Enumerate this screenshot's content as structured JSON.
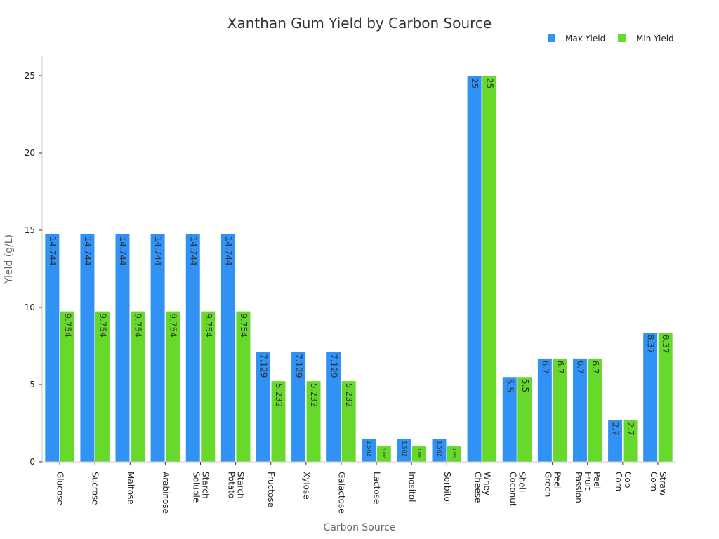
{
  "chart_data": {
    "type": "bar",
    "title": "Xanthan Gum Yield by Carbon Source",
    "xlabel": "Carbon Source",
    "ylabel": "Yield (g/L)",
    "ylim": [
      0,
      26.2
    ],
    "yticks": [
      0,
      5,
      10,
      15,
      20,
      25
    ],
    "legend_position": "top-right",
    "categories": [
      [
        "Glucose"
      ],
      [
        "Sucrose"
      ],
      [
        "Maltose"
      ],
      [
        "Arabinose"
      ],
      [
        "Soluble",
        "Starch"
      ],
      [
        "Potato",
        "Starch"
      ],
      [
        "Fructose"
      ],
      [
        "Xylose"
      ],
      [
        "Galactose"
      ],
      [
        "Lactose"
      ],
      [
        "Inositol"
      ],
      [
        "Sorbitol"
      ],
      [
        "Cheese",
        "Whey"
      ],
      [
        "Coconut",
        "Shell"
      ],
      [
        "Green",
        "Peel"
      ],
      [
        "Passion",
        "Fruit",
        "Peel"
      ],
      [
        "Corn",
        "Cob"
      ],
      [
        "Corn",
        "Straw"
      ]
    ],
    "series": [
      {
        "name": "Max Yield",
        "color": "#3092f5",
        "values": [
          14.744,
          14.744,
          14.744,
          14.744,
          14.744,
          14.744,
          7.129,
          7.129,
          7.129,
          1.502,
          1.502,
          1.502,
          25,
          5.5,
          6.7,
          6.7,
          2.7,
          8.37
        ],
        "labels": [
          "14.744",
          "14.744",
          "14.744",
          "14.744",
          "14.744",
          "14.744",
          "7.129",
          "7.129",
          "7.129",
          "1.502",
          "1.502",
          "1.502",
          "25",
          "5.5",
          "6.7",
          "6.7",
          "2.7",
          "8.37"
        ]
      },
      {
        "name": "Min Yield",
        "color": "#66d92a",
        "values": [
          9.754,
          9.754,
          9.754,
          9.754,
          9.754,
          9.754,
          5.232,
          5.232,
          5.232,
          1.008,
          1.008,
          1.008,
          25,
          5.5,
          6.7,
          6.7,
          2.7,
          8.37
        ],
        "labels": [
          "9.754",
          "9.754",
          "9.754",
          "9.754",
          "9.754",
          "9.754",
          "5.232",
          "5.232",
          "5.232",
          "1.008",
          "1.008",
          "1.008",
          "25",
          "5.5",
          "6.7",
          "6.7",
          "2.7",
          "8.37"
        ]
      }
    ]
  }
}
